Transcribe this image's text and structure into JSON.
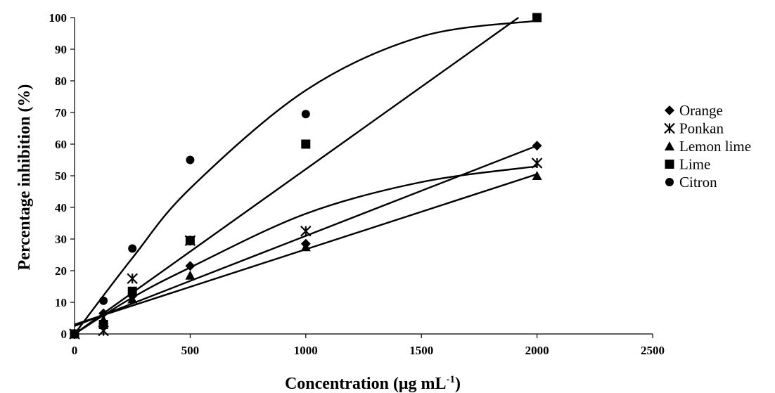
{
  "chart_data": {
    "type": "scatter",
    "title": "",
    "xlabel": "Concentration (μg mL",
    "xlabel_sup": "-1",
    "xlabel_close": ")",
    "ylabel": "Percentage  inhibition (%)",
    "xlim": [
      0,
      2500
    ],
    "ylim": [
      0,
      100
    ],
    "x_ticks": [
      0,
      500,
      1000,
      1500,
      2000,
      2500
    ],
    "y_ticks": [
      0,
      10,
      20,
      30,
      40,
      50,
      60,
      70,
      80,
      90,
      100
    ],
    "grid": false,
    "legend_position": "right",
    "x": [
      0,
      125,
      250,
      500,
      1000,
      2000
    ],
    "series": [
      {
        "name": "Orange",
        "marker": "diamond",
        "values": [
          0,
          6.5,
          12,
          21.5,
          28.5,
          59.5
        ],
        "trendline": {
          "type": "linear",
          "x": [
            0,
            2000
          ],
          "y": [
            2.5,
            59.5
          ]
        }
      },
      {
        "name": "Ponkan",
        "marker": "asterisk",
        "values": [
          0,
          1,
          17.5,
          29.5,
          32.5,
          54
        ],
        "trendline": {
          "type": "curve",
          "x": [
            0,
            250,
            500,
            1000,
            1500,
            2000
          ],
          "y": [
            0,
            11.5,
            21,
            38,
            48,
            53
          ]
        }
      },
      {
        "name": "Lemon lime",
        "marker": "triangle",
        "values": [
          0,
          4.5,
          11,
          18.5,
          27.5,
          50
        ],
        "trendline": {
          "type": "linear",
          "x": [
            0,
            2000
          ],
          "y": [
            3,
            50.5
          ]
        }
      },
      {
        "name": "Lime",
        "marker": "square",
        "values": [
          0,
          3,
          13.5,
          29.5,
          60,
          100
        ],
        "trendline": {
          "type": "linear",
          "x": [
            0,
            1920
          ],
          "y": [
            0,
            100
          ]
        }
      },
      {
        "name": "Citron",
        "marker": "circle",
        "values": [
          0,
          10.5,
          27,
          55,
          69.5,
          100
        ],
        "trendline": {
          "type": "curve",
          "x": [
            0,
            250,
            500,
            1000,
            1500,
            2000
          ],
          "y": [
            0,
            24,
            46,
            77,
            94,
            99
          ]
        }
      }
    ]
  }
}
